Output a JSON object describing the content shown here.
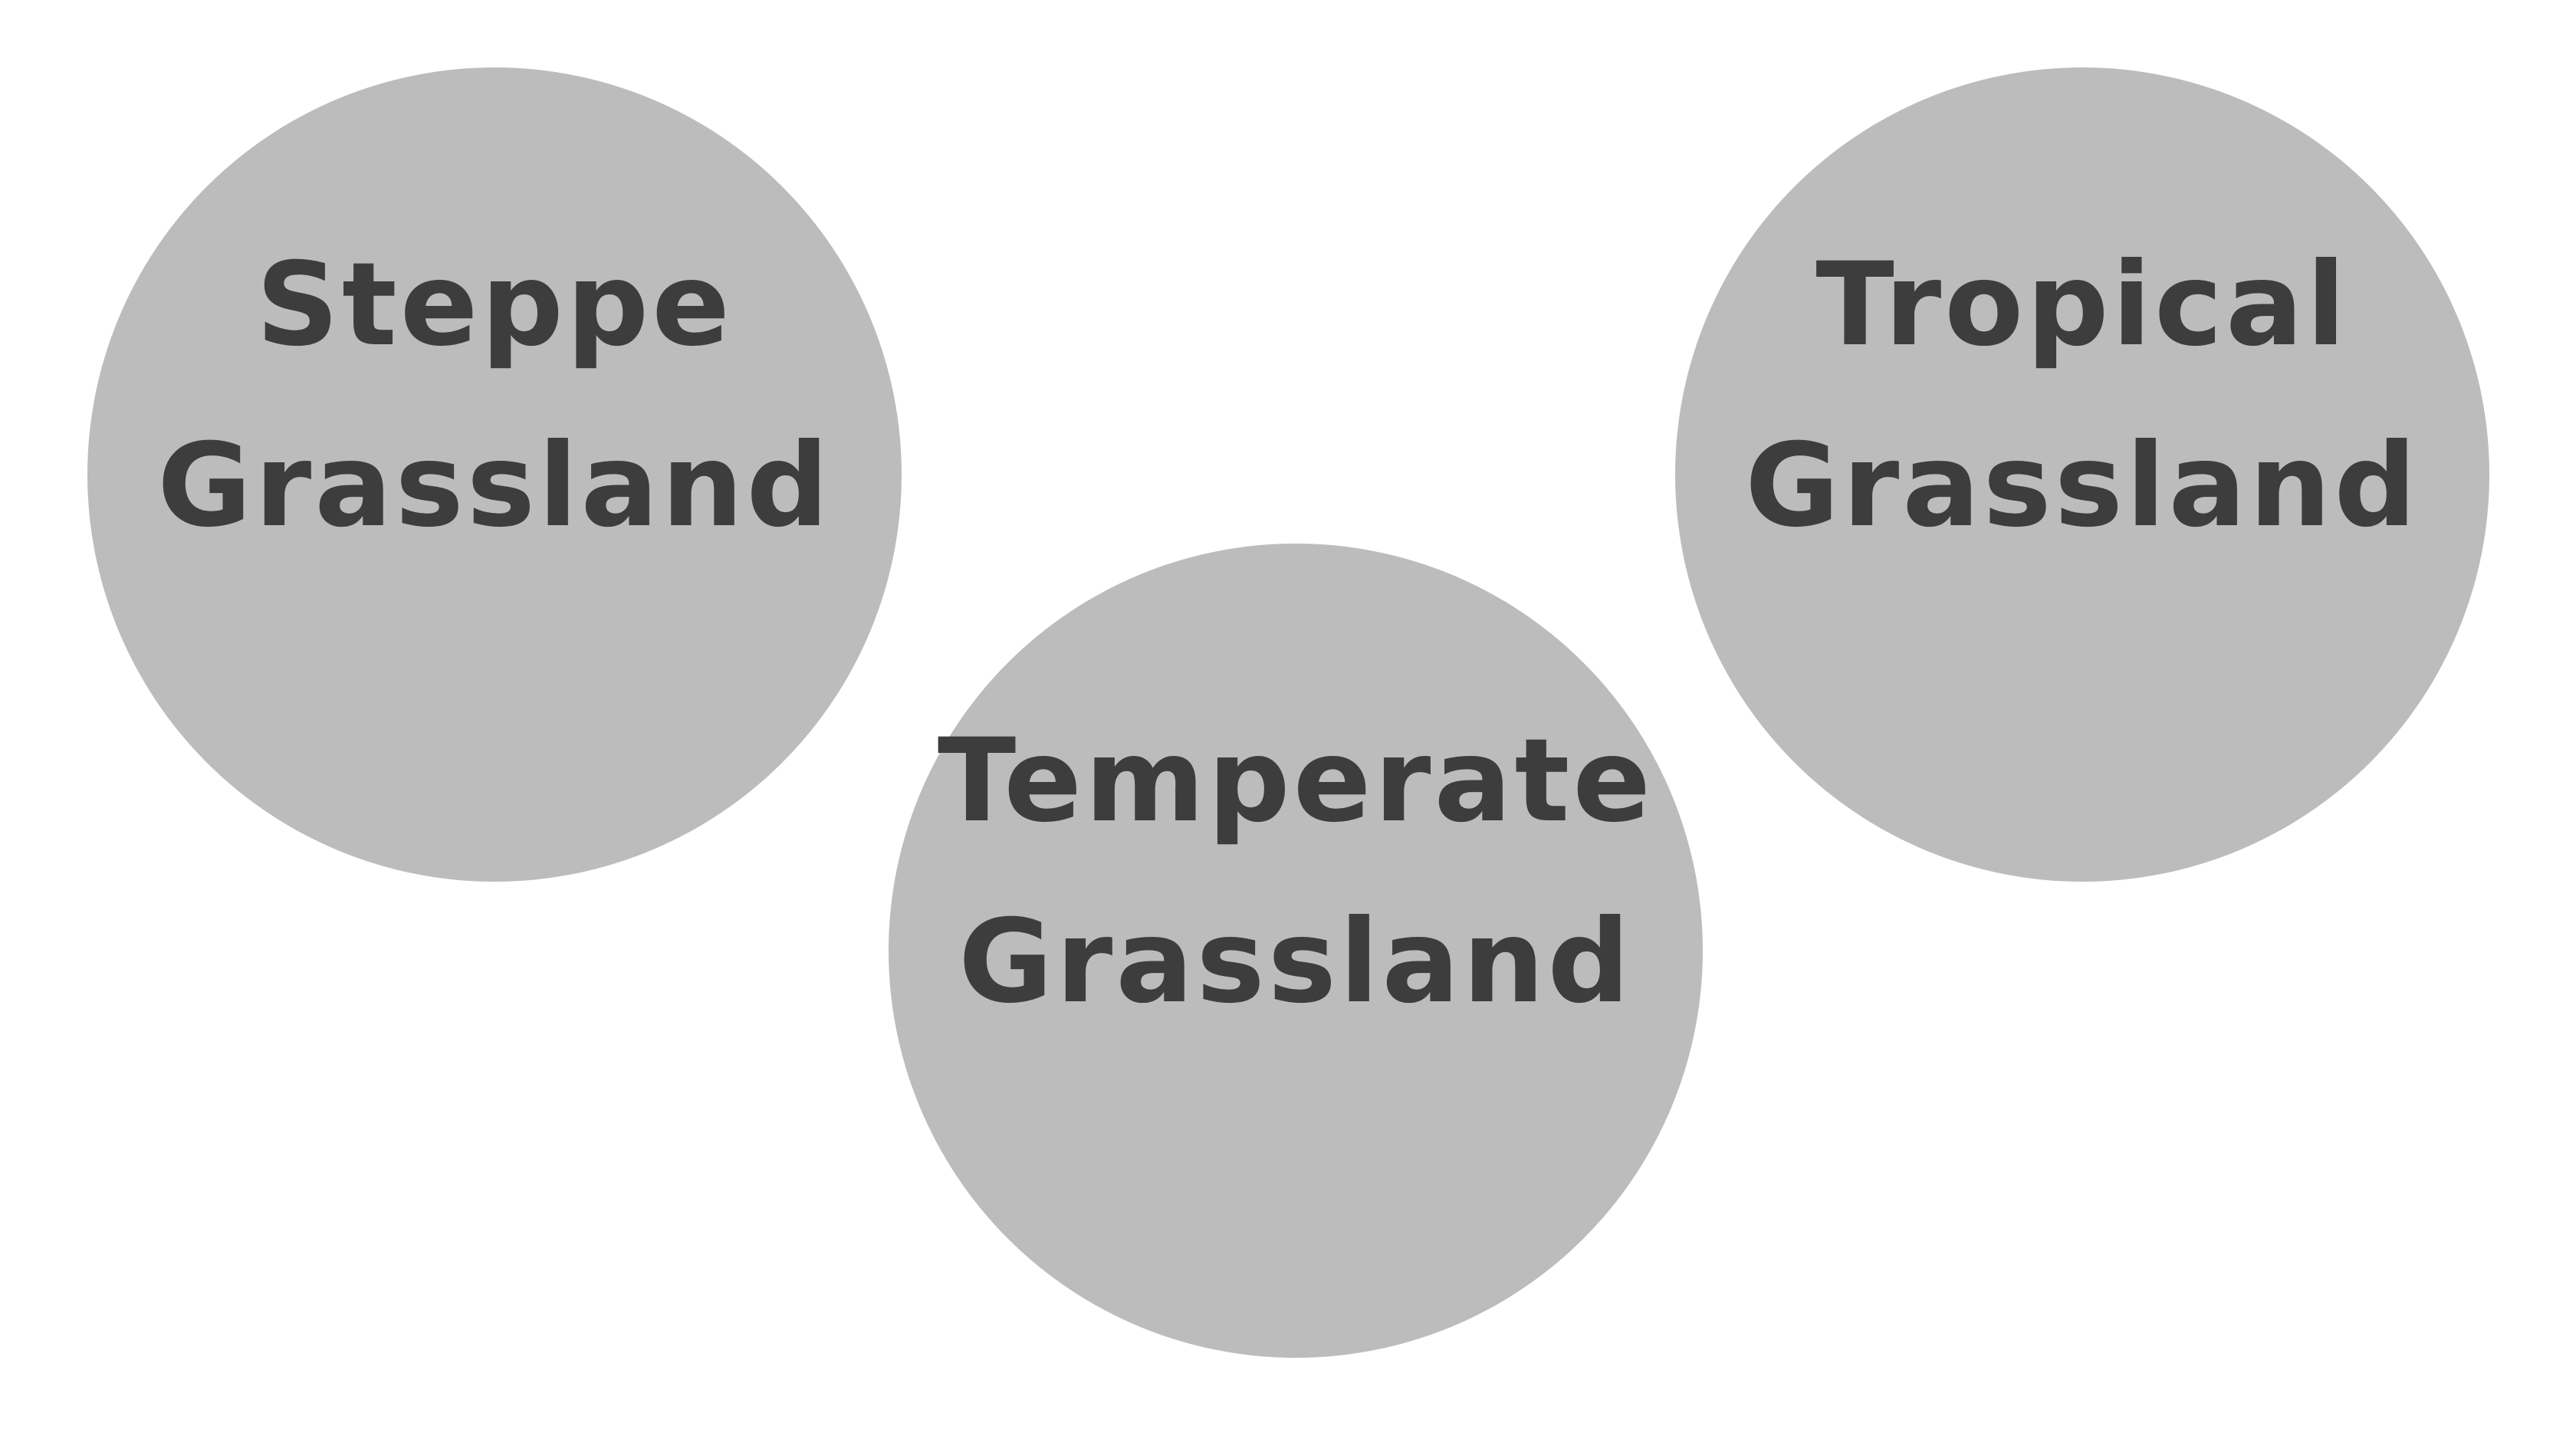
{
  "colors": {
    "background": "#ffffff",
    "circle_fill": "#bcbcbc",
    "text": "#3d3d3d"
  },
  "circles": [
    {
      "id": "steppe",
      "line1": "Steppe",
      "line2": "Grassland"
    },
    {
      "id": "temperate",
      "line1": "Temperate",
      "line2": "Grassland"
    },
    {
      "id": "tropical",
      "line1": "Tropical",
      "line2": "Grassland"
    }
  ]
}
